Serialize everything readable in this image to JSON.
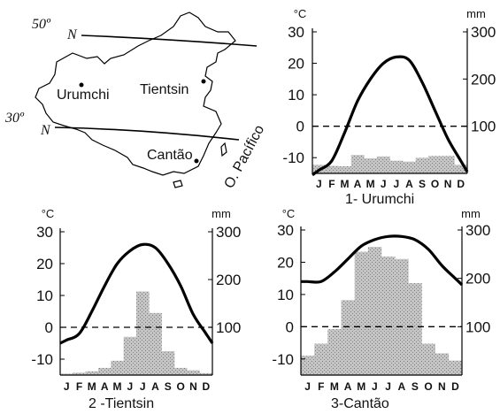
{
  "colors": {
    "bar": "#c4c4c4",
    "bar_dots": "#7a7a7a",
    "line": "#000000",
    "axis": "#000000"
  },
  "map": {
    "lat_lines": [
      {
        "label": "50º",
        "letter": "N"
      },
      {
        "label": "30º",
        "letter": "N"
      }
    ],
    "cities": [
      "Urumchi",
      "Tientsin",
      "Cantão"
    ],
    "ocean": "O. Pacífico"
  },
  "chart_data": [
    {
      "type": "bar",
      "title": "1- Urumchi",
      "temp_unit": "°C",
      "precip_unit": "mm",
      "categories": [
        "J",
        "F",
        "M",
        "A",
        "M",
        "J",
        "J",
        "A",
        "S",
        "O",
        "N",
        "D"
      ],
      "temperature_ylim": [
        -15,
        30
      ],
      "temperature_ticks": [
        "30",
        "20",
        "10",
        "0",
        "-10"
      ],
      "precip_ylim": [
        0,
        300
      ],
      "precip_ticks": [
        "300",
        "200",
        "100"
      ],
      "series": [
        {
          "name": "",
          "kind": "line",
          "axis": "temperature",
          "values": [
            -14,
            -11,
            -2,
            8,
            15,
            20,
            22,
            21,
            14,
            5,
            -4,
            -11
          ]
        },
        {
          "name": "",
          "kind": "bar",
          "axis": "precipitation",
          "values": [
            18,
            16,
            15,
            39,
            32,
            36,
            27,
            25,
            33,
            37,
            37,
            18
          ]
        }
      ],
      "reference_line_temp": 0
    },
    {
      "type": "bar",
      "title": "2 -Tientsin",
      "temp_unit": "°C",
      "precip_unit": "mm",
      "categories": [
        "J",
        "F",
        "M",
        "A",
        "M",
        "J",
        "J",
        "A",
        "S",
        "O",
        "N",
        "D"
      ],
      "temperature_ylim": [
        -15,
        30
      ],
      "temperature_ticks": [
        "30",
        "20",
        "10",
        "0",
        "-10"
      ],
      "precip_ylim": [
        0,
        300
      ],
      "precip_ticks": [
        "300",
        "200",
        "100"
      ],
      "series": [
        {
          "name": "",
          "kind": "line",
          "axis": "temperature",
          "values": [
            -4,
            -2,
            5,
            13,
            20,
            24,
            26,
            25,
            20,
            13,
            4,
            -2
          ]
        },
        {
          "name": "",
          "kind": "bar",
          "axis": "precipitation",
          "values": [
            3,
            5,
            8,
            15,
            30,
            80,
            175,
            130,
            50,
            15,
            10,
            4
          ]
        }
      ],
      "reference_line_temp": 0
    },
    {
      "type": "bar",
      "title": "3-Cantão",
      "temp_unit": "°C",
      "precip_unit": "mm",
      "categories": [
        "J",
        "F",
        "M",
        "A",
        "M",
        "J",
        "J",
        "A",
        "S",
        "O",
        "N",
        "D"
      ],
      "temperature_ylim": [
        -15,
        30
      ],
      "temperature_ticks": [
        "30",
        "20",
        "10",
        "0",
        "-10"
      ],
      "precip_ylim": [
        0,
        300
      ],
      "precip_ticks": [
        "300",
        "200",
        "100"
      ],
      "series": [
        {
          "name": "",
          "kind": "line",
          "axis": "temperature",
          "values": [
            14,
            14,
            17,
            21,
            25,
            27,
            28,
            28,
            27,
            24,
            19,
            15
          ]
        },
        {
          "name": "",
          "kind": "bar",
          "axis": "precipitation",
          "values": [
            40,
            65,
            95,
            155,
            255,
            265,
            245,
            240,
            190,
            65,
            45,
            30
          ]
        }
      ],
      "reference_line_temp": 0
    }
  ]
}
